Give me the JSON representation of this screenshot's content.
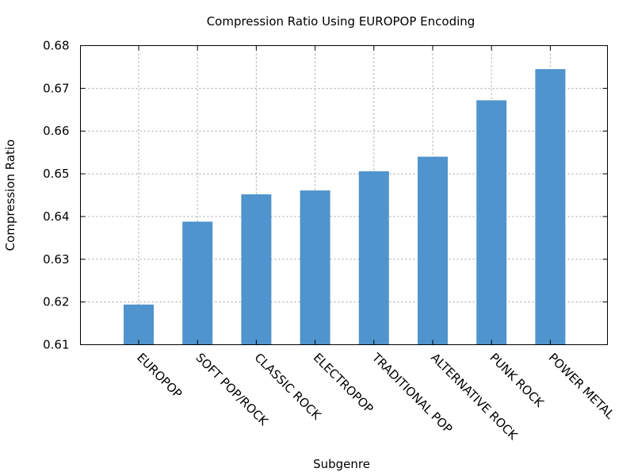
{
  "chart_data": {
    "type": "bar",
    "title": "Compression Ratio Using EUROPOP Encoding",
    "xlabel": "Subgenre",
    "ylabel": "Compression Ratio",
    "categories": [
      "EUROPOP",
      "SOFT POP/ROCK",
      "CLASSIC ROCK",
      "ELECTROPOP",
      "TRADITIONAL POP",
      "ALTERNATIVE ROCK",
      "PUNK ROCK",
      "POWER METAL"
    ],
    "values": [
      0.6194,
      0.6388,
      0.6452,
      0.6461,
      0.6506,
      0.654,
      0.6672,
      0.6745
    ],
    "ylim": [
      0.61,
      0.68
    ],
    "yticks": [
      "0.61",
      "0.62",
      "0.63",
      "0.64",
      "0.65",
      "0.66",
      "0.67",
      "0.68"
    ],
    "grid": true,
    "legend": "none",
    "bar_color": "#4f94cd"
  }
}
